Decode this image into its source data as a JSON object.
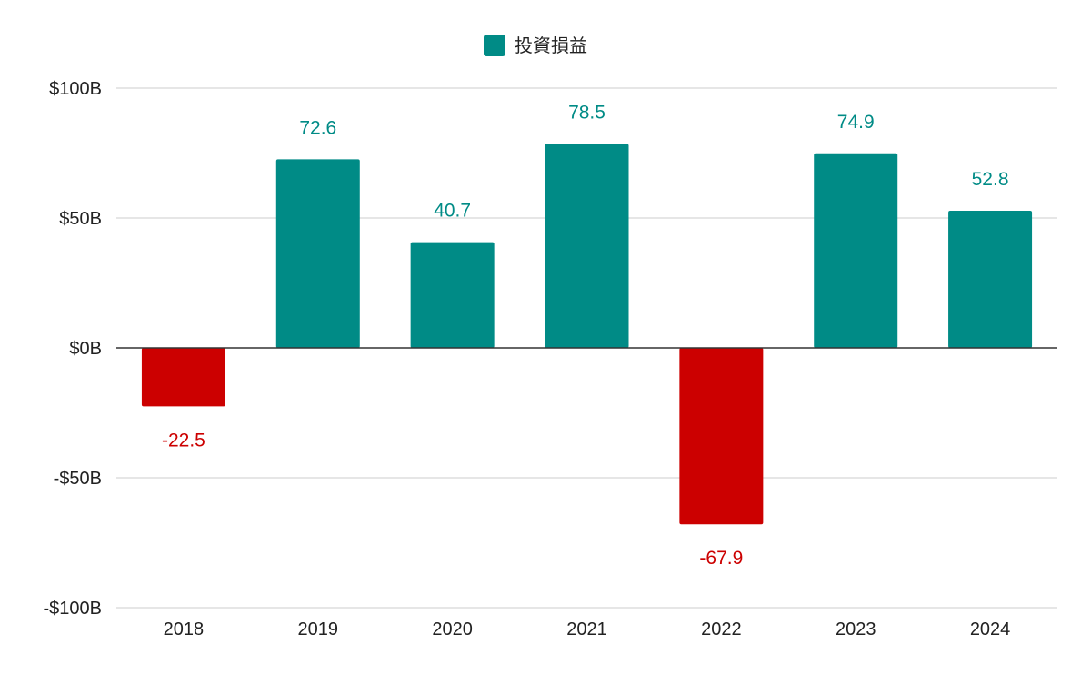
{
  "chart_data": {
    "type": "bar",
    "categories": [
      "2018",
      "2019",
      "2020",
      "2021",
      "2022",
      "2023",
      "2024"
    ],
    "series": [
      {
        "name": "投資損益",
        "values": [
          -22.5,
          72.6,
          40.7,
          78.5,
          -67.9,
          74.9,
          52.8
        ],
        "value_labels": [
          "-22.5",
          "72.6",
          "40.7",
          "78.5",
          "-67.9",
          "74.9",
          "52.8"
        ]
      }
    ],
    "yticks": [
      {
        "value": 100,
        "label": "$100B"
      },
      {
        "value": 50,
        "label": "$50B"
      },
      {
        "value": 0,
        "label": "$0B"
      },
      {
        "value": -50,
        "label": "-$50B"
      },
      {
        "value": -100,
        "label": "-$100B"
      }
    ],
    "ylim": [
      -100,
      100
    ],
    "grid": true,
    "legend_position": "top-center",
    "colors": {
      "positive": "#008b86",
      "negative": "#cc0000",
      "gridline": "#cccccc",
      "zero_line": "#333333",
      "text": "#222222"
    }
  }
}
